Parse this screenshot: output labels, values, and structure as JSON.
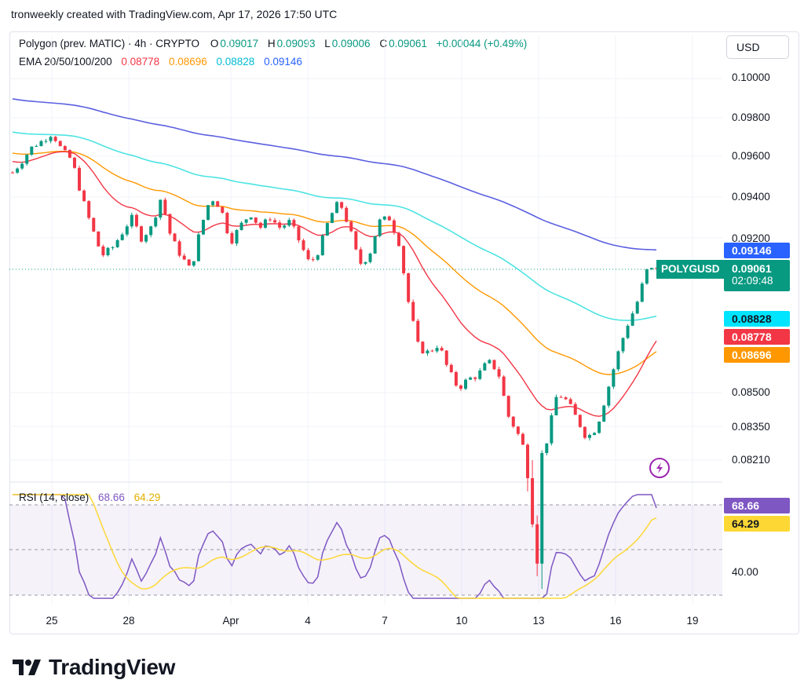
{
  "header": {
    "credit": "tronweekly created with TradingView.com, Apr 17, 2026 17:50 UTC"
  },
  "legend": {
    "symbol": "Polygon (prev. MATIC) · 4h · CRYPTO",
    "o_label": "O",
    "o_value": "0.09017",
    "h_label": "H",
    "h_value": "0.09093",
    "l_label": "L",
    "l_value": "0.09006",
    "c_label": "C",
    "c_value": "0.09061",
    "change": "+0.00044 (+0.49%)",
    "ema_label": "EMA 20/50/100/200",
    "ema20": "0.08778",
    "ema50": "0.08696",
    "ema100": "0.08828",
    "ema200": "0.09146"
  },
  "currency_button": "USD",
  "price_axis": [
    "0.10000",
    "0.09800",
    "0.09600",
    "0.09400",
    "0.09200",
    "0.08500",
    "0.08350",
    "0.08210"
  ],
  "tags": {
    "ema200": "0.09146",
    "price": "0.09061",
    "countdown": "02:09:48",
    "symbol": "POLYGUSD",
    "ema100": "0.08828",
    "ema20": "0.08778",
    "ema50": "0.08696"
  },
  "rsi": {
    "label": "RSI (14, close)",
    "value": "68.66",
    "ma": "64.29",
    "axis_40": "40.00"
  },
  "time_axis": [
    "25",
    "28",
    "Apr",
    "4",
    "7",
    "10",
    "13",
    "16",
    "19"
  ],
  "brand": "TradingView",
  "colors": {
    "up": "#089981",
    "down": "#f23645",
    "ema20": "#f23645",
    "ema50": "#ff9800",
    "ema100": "#4ee3e3",
    "ema200": "#5b5fe0",
    "rsi": "#7e57c2",
    "rsi_ma": "#fdd835"
  },
  "chart_data": {
    "type": "candlestick",
    "title": "Polygon (prev. MATIC) · 4h · CRYPTO",
    "x": [
      "25",
      "28",
      "Apr",
      "4",
      "7",
      "10",
      "13",
      "16",
      "19"
    ],
    "close_path": [
      0.0952,
      0.0958,
      0.0965,
      0.0968,
      0.0972,
      0.0963,
      0.0958,
      0.094,
      0.0925,
      0.0912,
      0.0915,
      0.0922,
      0.093,
      0.092,
      0.0925,
      0.094,
      0.092,
      0.0912,
      0.0905,
      0.0925,
      0.094,
      0.0935,
      0.0918,
      0.0926,
      0.0932,
      0.0925,
      0.093,
      0.0925,
      0.0928,
      0.0918,
      0.0908,
      0.0915,
      0.093,
      0.0938,
      0.0925,
      0.0908,
      0.0912,
      0.0928,
      0.093,
      0.0918,
      0.089,
      0.087,
      0.0868,
      0.0872,
      0.086,
      0.0852,
      0.0856,
      0.0858,
      0.0864,
      0.086,
      0.084,
      0.0832,
      0.0822,
      0.0818,
      0.083,
      0.085,
      0.0846,
      0.0838,
      0.083,
      0.0835,
      0.085,
      0.0866,
      0.088,
      0.089,
      0.0905,
      0.0906
    ],
    "ema_values": {
      "20": 0.08778,
      "50": 0.08696,
      "100": 0.08828,
      "200": 0.09146
    },
    "last_close": 0.09061,
    "rsi": [
      {
        "name": "RSI",
        "last": 68.66
      },
      {
        "name": "MA",
        "last": 64.29
      }
    ]
  }
}
